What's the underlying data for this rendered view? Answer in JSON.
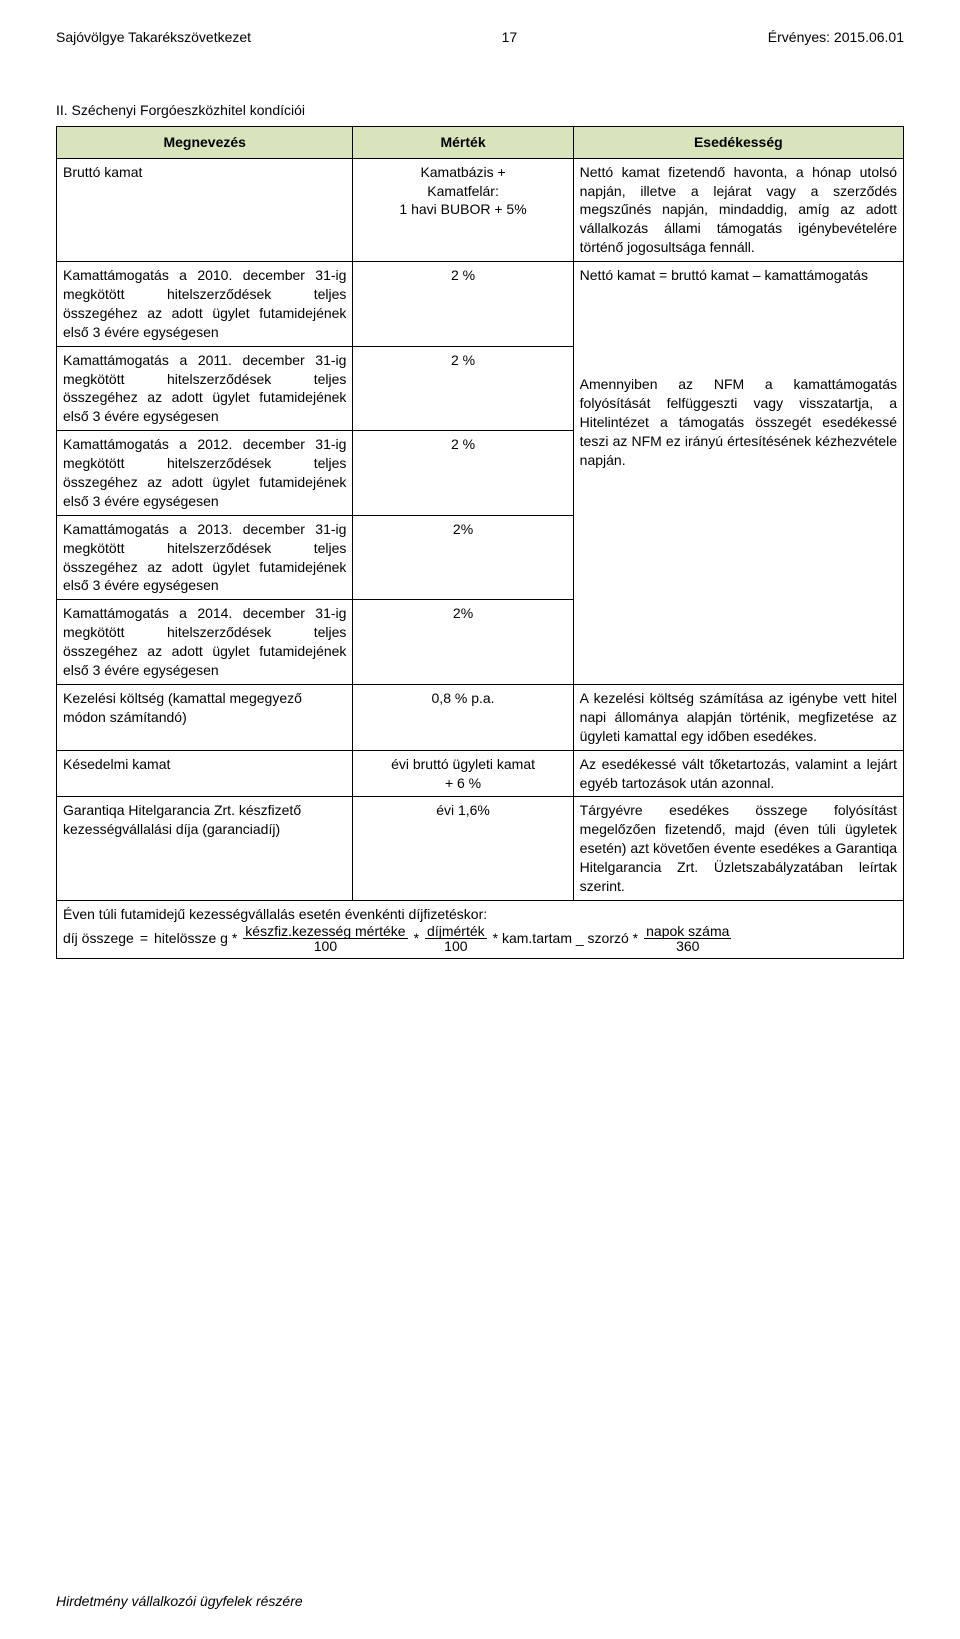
{
  "header": {
    "left": "Sajóvölgye Takarékszövetkezet",
    "page_number": "17",
    "right": "Érvényes: 2015.06.01"
  },
  "section_title": "II. Széchenyi Forgóeszközhitel kondíciói",
  "table": {
    "columns": {
      "megnevezes": "Megnevezés",
      "mertek": "Mérték",
      "esedekesseg": "Esedékesség"
    },
    "rows": {
      "brutto_kamat": {
        "label": "Bruttó kamat",
        "mertek": "Kamatbázis +\nKamatfelár:\n1 havi BUBOR + 5%",
        "esed": "Nettó kamat fizetendő havonta, a hónap utolsó napján, illetve a lejárat vagy a szerződés megszűnés napján, mindaddig, amíg az adott vállalkozás állami támogatás igénybevételére történő jogosultsága fennáll."
      },
      "kamattamogatas_intro": "Nettó kamat = bruttó kamat – kamattámogatás",
      "kamattamogatas_body": "Amennyiben az NFM a kamattámogatás folyósítását felfüggeszti vagy visszatartja, a Hitelintézet a támogatás összegét esedékessé teszi az NFM ez irányú értesítésének kézhezvétele napján.",
      "k2010": {
        "label": "Kamattámogatás a 2010. december 31-ig megkötött hitelszerződések teljes összegéhez az adott ügylet futamidejének első 3 évére egységesen",
        "mertek": "2 %"
      },
      "k2011": {
        "label": "Kamattámogatás a 2011. december 31-ig megkötött hitelszerződések teljes összegéhez az adott ügylet futamidejének első 3 évére egységesen",
        "mertek": "2 %"
      },
      "k2012": {
        "label": "Kamattámogatás a 2012. december 31-ig megkötött hitelszerződések teljes összegéhez az adott ügylet futamidejének első 3 évére egységesen",
        "mertek": "2 %"
      },
      "k2013": {
        "label": "Kamattámogatás a 2013. december 31-ig megkötött hitelszerződések teljes összegéhez az adott ügylet futamidejének első 3 évére egységesen",
        "mertek": "2%"
      },
      "k2014": {
        "label": "Kamattámogatás a 2014. december 31-ig megkötött hitelszerződések teljes összegéhez az adott ügylet futamidejének első 3 évére egységesen",
        "mertek": "2%"
      },
      "kezelesi": {
        "label": "Kezelési költség (kamattal megegyező módon számítandó)",
        "mertek": "0,8 % p.a.",
        "esed": "A kezelési költség számítása az igénybe vett hitel napi állománya alapján történik, megfizetése az ügyleti kamattal egy időben esedékes."
      },
      "kesedelmi": {
        "label": "Késedelmi kamat",
        "mertek": "évi bruttó ügyleti kamat\n+ 6 %",
        "esed": "Az esedékessé vált tőketartozás, valamint a lejárt egyéb tartozások után azonnal."
      },
      "garantiqa": {
        "label": "Garantiqa Hitelgarancia Zrt. készfizető kezességvállalási díja (garanciadíj)",
        "mertek": "évi 1,6%",
        "esed": "Tárgyévre esedékes összege folyósítást megelőzően fizetendő, majd (éven túli ügyletek esetén) azt követően évente esedékes a Garantiqa Hitelgarancia Zrt. Üzletszabályzatában leírtak szerint."
      }
    },
    "formula": {
      "caption": "Éven túli futamidejű kezességvállalás esetén évenkénti díjfizetéskor:",
      "lhs_a": "díj összege",
      "eq": "=",
      "lhs_b": "hitelössze g *",
      "frac1_num": "készfiz.kezesség mértéke",
      "frac1_den": "100",
      "frac2_num": "díjmérték",
      "frac2_den": "100",
      "mid": "* kam.tartam _ szorzó *",
      "frac3_num": "napok száma",
      "frac3_den": "360",
      "star": "*"
    }
  },
  "footer": "Hirdetmény vállalkozói ügyfelek részére"
}
